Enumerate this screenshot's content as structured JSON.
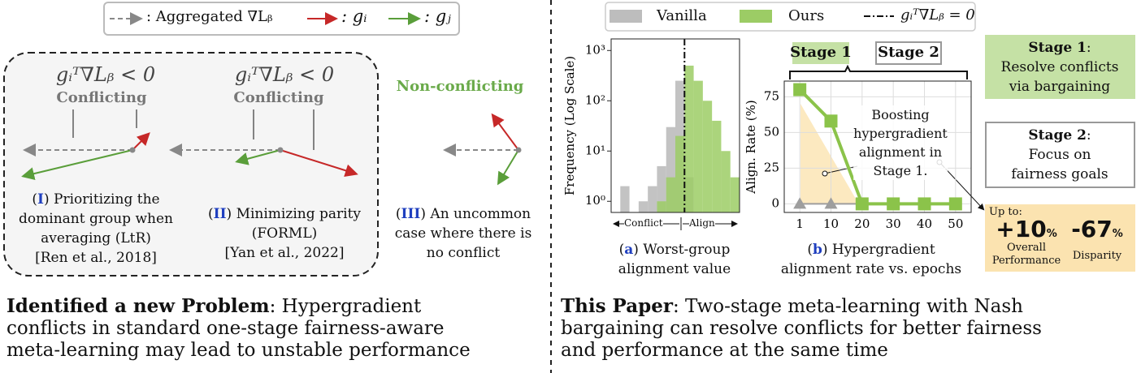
{
  "left_panel": {
    "legend": {
      "aggregated": ": Aggregated ∇Lᵦ",
      "gi": ": gᵢ",
      "gj": ": gⱼ"
    },
    "cases": [
      {
        "condition": "gᵢᵀ∇Lᵦ < 0",
        "label": "Conflicting",
        "caption": [
          "(",
          "I",
          ") Prioritizing the",
          "dominant group when",
          "averaging (LtR)"
        ],
        "cite": "[Ren et al., 2018]"
      },
      {
        "condition": "gᵢᵀ∇Lᵦ < 0",
        "label": "Conflicting",
        "caption": [
          "(",
          "II",
          ") Minimizing parity",
          "(FORML)"
        ],
        "cite": "[Yan et al., 2022]"
      },
      {
        "label": "Non-conflicting",
        "caption": [
          "(",
          "III",
          ") An uncommon",
          "case where there is",
          "no conflict"
        ]
      }
    ],
    "problem": {
      "lead": "Identified a new Problem",
      "lines": [
        ": Hypergradient",
        "conflicts in standard one-stage fairness-aware",
        "meta-learning may lead to unstable performance"
      ]
    }
  },
  "right_panel": {
    "legend": [
      "Vanilla",
      "Ours",
      "gᵢᵀ∇Lᵦ = 0"
    ],
    "hist_caption": [
      "(",
      "a",
      ") Worst-group",
      "alignment value"
    ],
    "hist_x_labels": [
      "Conflict",
      "Align"
    ],
    "line_caption": [
      "(",
      "b",
      ") Hypergradient",
      "alignment rate vs. epochs"
    ],
    "stages": [
      "Stage 1",
      "Stage 2"
    ],
    "annotation": [
      "Boosting",
      "hypergradient",
      "alignment in",
      "Stage 1."
    ],
    "boxes": [
      {
        "title": "Stage 1",
        "colon": ":",
        "lines": [
          "Resolve conflicts",
          "via bargaining"
        ]
      },
      {
        "title": "Stage 2",
        "colon": ":",
        "lines": [
          "Focus on",
          "fairness goals"
        ]
      }
    ],
    "gains": {
      "prefix": "Up to:",
      "items": [
        {
          "value": "+10",
          "unit": "%",
          "label": [
            "Overall",
            "Performance"
          ]
        },
        {
          "value": "-67",
          "unit": "%",
          "label": [
            "Disparity"
          ]
        }
      ]
    },
    "paper": {
      "lead": "This Paper",
      "lines": [
        ": Two-stage meta-learning with Nash",
        "bargaining can resolve conflicts for better fairness",
        "and performance at the same time"
      ]
    }
  },
  "chart_data": [
    {
      "type": "histogram",
      "ylabel": "Frequency  (Log Scale)",
      "log_y": true,
      "bins": [
        -0.8,
        -0.7,
        -0.6,
        -0.5,
        -0.4,
        -0.3,
        -0.2,
        -0.1,
        0,
        0.1,
        0.2,
        0.3,
        0.4,
        0.5,
        0.6
      ],
      "xlim": [
        -0.8,
        0.6
      ],
      "ylim": [
        0.6,
        1700
      ],
      "vline": 0,
      "yticks": [
        {
          "value": 1,
          "label": "10⁰"
        },
        {
          "value": 10,
          "label": "10¹"
        },
        {
          "value": 100,
          "label": "10²"
        },
        {
          "value": 1000,
          "label": "10³"
        }
      ],
      "series": [
        {
          "name": "Vanilla",
          "color": "#bdbdbd",
          "values": [
            0,
            2,
            0,
            1,
            2,
            5,
            30,
            250,
            3,
            0,
            0,
            0,
            0,
            0
          ]
        },
        {
          "name": "Ours",
          "color": "#9ccc65",
          "values": [
            0,
            0,
            0,
            0,
            0,
            1,
            3,
            20,
            500,
            250,
            100,
            40,
            10,
            3
          ]
        }
      ]
    },
    {
      "type": "line",
      "ylabel": "Align. Rate (%)",
      "categories": [
        "1",
        "10",
        "20",
        "30",
        "40",
        "50"
      ],
      "ylim": [
        -6,
        86
      ],
      "yticks": [
        0,
        25,
        50,
        75
      ],
      "grid": true,
      "series": [
        {
          "name": "Vanilla",
          "color": "#9e9e9e",
          "values": [
            0,
            0,
            0,
            0,
            0,
            0
          ]
        },
        {
          "name": "Ours",
          "color": "#8bc34a",
          "values": [
            80,
            58,
            0,
            0,
            0,
            0
          ]
        }
      ]
    }
  ]
}
